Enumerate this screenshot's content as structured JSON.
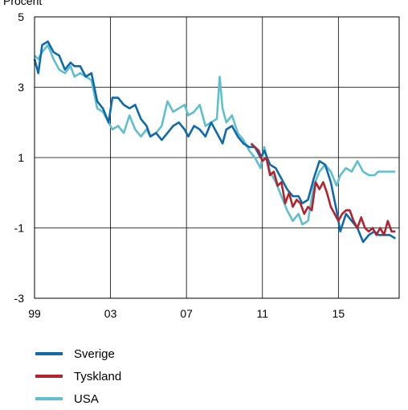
{
  "page": {
    "ylabel_text": "Procent"
  },
  "chart_data": {
    "type": "line",
    "ylabel": "Procent",
    "xlabel": "",
    "xlim": [
      1999,
      2018.2
    ],
    "ylim": [
      -3,
      5
    ],
    "yticks": [
      5,
      3,
      1,
      -1,
      -3
    ],
    "xticks": [
      {
        "label": "99",
        "value": 1999
      },
      {
        "label": "03",
        "value": 2003
      },
      {
        "label": "07",
        "value": 2007
      },
      {
        "label": "11",
        "value": 2011
      },
      {
        "label": "15",
        "value": 2015
      }
    ],
    "grid": true,
    "legend_position": "bottom-left",
    "series": [
      {
        "name": "Sverige",
        "color": "#0f6aab",
        "x": [
          1999.0,
          1999.2,
          1999.4,
          1999.7,
          2000.0,
          2000.3,
          2000.6,
          2000.9,
          2001.1,
          2001.4,
          2001.7,
          2002.0,
          2002.3,
          2002.6,
          2002.9,
          2003.1,
          2003.4,
          2003.7,
          2004.0,
          2004.3,
          2004.6,
          2004.9,
          2005.1,
          2005.4,
          2005.7,
          2006.0,
          2006.3,
          2006.6,
          2006.9,
          2007.1,
          2007.4,
          2007.7,
          2008.0,
          2008.3,
          2008.6,
          2008.9,
          2009.1,
          2009.4,
          2009.7,
          2010.0,
          2010.3,
          2010.6,
          2010.9,
          2011.1,
          2011.4,
          2011.7,
          2012.0,
          2012.3,
          2012.6,
          2012.9,
          2013.1,
          2013.4,
          2013.7,
          2014.0,
          2014.3,
          2014.6,
          2014.9,
          2015.1,
          2015.4,
          2015.7,
          2016.0,
          2016.3,
          2016.6,
          2016.9,
          2017.1,
          2017.4,
          2017.7,
          2018.0
        ],
        "y": [
          3.8,
          3.4,
          4.2,
          4.3,
          4.0,
          3.9,
          3.5,
          3.7,
          3.6,
          3.6,
          3.3,
          3.4,
          2.6,
          2.4,
          2.0,
          2.7,
          2.7,
          2.5,
          2.4,
          2.5,
          2.1,
          1.9,
          1.6,
          1.7,
          1.5,
          1.7,
          1.9,
          2.0,
          1.8,
          1.6,
          1.9,
          1.8,
          1.6,
          2.0,
          1.7,
          1.4,
          1.8,
          1.9,
          1.6,
          1.4,
          1.3,
          1.3,
          1.0,
          1.2,
          0.8,
          0.7,
          0.4,
          0.1,
          -0.1,
          -0.1,
          -0.3,
          -0.2,
          0.4,
          0.9,
          0.8,
          0.3,
          -0.5,
          -1.1,
          -0.6,
          -0.8,
          -1.0,
          -1.4,
          -1.2,
          -1.1,
          -1.2,
          -1.2,
          -1.2,
          -1.3
        ]
      },
      {
        "name": "Tyskland",
        "color": "#b0242f",
        "x": [
          2010.4,
          2010.6,
          2010.8,
          2011.0,
          2011.2,
          2011.4,
          2011.6,
          2011.8,
          2012.0,
          2012.2,
          2012.4,
          2012.6,
          2012.8,
          2013.0,
          2013.2,
          2013.4,
          2013.6,
          2013.8,
          2014.0,
          2014.2,
          2014.4,
          2014.6,
          2014.8,
          2015.0,
          2015.2,
          2015.4,
          2015.6,
          2015.8,
          2016.0,
          2016.2,
          2016.4,
          2016.6,
          2016.8,
          2017.0,
          2017.2,
          2017.4,
          2017.6,
          2017.8,
          2018.0
        ],
        "y": [
          1.4,
          1.3,
          1.2,
          0.9,
          1.0,
          0.5,
          0.6,
          0.2,
          0.3,
          -0.3,
          0.0,
          -0.4,
          -0.2,
          -0.3,
          -0.6,
          -0.4,
          -0.5,
          0.3,
          0.1,
          0.3,
          0.0,
          -0.4,
          -0.6,
          -0.8,
          -0.6,
          -0.5,
          -0.5,
          -0.8,
          -1.0,
          -0.7,
          -1.0,
          -1.1,
          -1.0,
          -1.2,
          -1.0,
          -1.2,
          -0.8,
          -1.1,
          -1.1
        ]
      },
      {
        "name": "USA",
        "color": "#5fbfcf",
        "x": [
          1999.0,
          1999.2,
          1999.4,
          1999.7,
          2000.0,
          2000.3,
          2000.6,
          2000.9,
          2001.1,
          2001.4,
          2001.7,
          2002.0,
          2002.3,
          2002.6,
          2002.9,
          2003.1,
          2003.4,
          2003.7,
          2004.0,
          2004.3,
          2004.6,
          2004.9,
          2005.1,
          2005.4,
          2005.7,
          2006.0,
          2006.3,
          2006.6,
          2006.9,
          2007.1,
          2007.4,
          2007.7,
          2008.0,
          2008.3,
          2008.6,
          2008.75,
          2008.9,
          2009.1,
          2009.4,
          2009.7,
          2010.0,
          2010.3,
          2010.6,
          2010.9,
          2011.1,
          2011.4,
          2011.7,
          2012.0,
          2012.3,
          2012.6,
          2012.9,
          2013.1,
          2013.4,
          2013.7,
          2014.0,
          2014.3,
          2014.6,
          2014.9,
          2015.1,
          2015.4,
          2015.7,
          2016.0,
          2016.3,
          2016.6,
          2016.9,
          2017.1,
          2017.4,
          2017.7,
          2018.0
        ],
        "y": [
          3.9,
          3.8,
          4.0,
          4.2,
          3.8,
          3.5,
          3.4,
          3.6,
          3.3,
          3.4,
          3.3,
          3.2,
          2.4,
          2.3,
          2.0,
          1.8,
          1.9,
          1.7,
          2.2,
          1.8,
          1.6,
          1.8,
          1.6,
          1.7,
          1.9,
          2.6,
          2.3,
          2.4,
          2.5,
          2.2,
          2.3,
          2.5,
          1.9,
          2.0,
          2.1,
          3.3,
          2.4,
          2.0,
          2.2,
          1.7,
          1.5,
          1.2,
          1.0,
          0.7,
          1.3,
          0.6,
          0.3,
          -0.1,
          -0.5,
          -0.8,
          -0.6,
          -0.9,
          -0.8,
          0.2,
          0.6,
          0.8,
          0.6,
          0.2,
          0.5,
          0.7,
          0.6,
          0.9,
          0.6,
          0.5,
          0.5,
          0.6,
          0.6,
          0.6,
          0.6
        ]
      }
    ]
  }
}
